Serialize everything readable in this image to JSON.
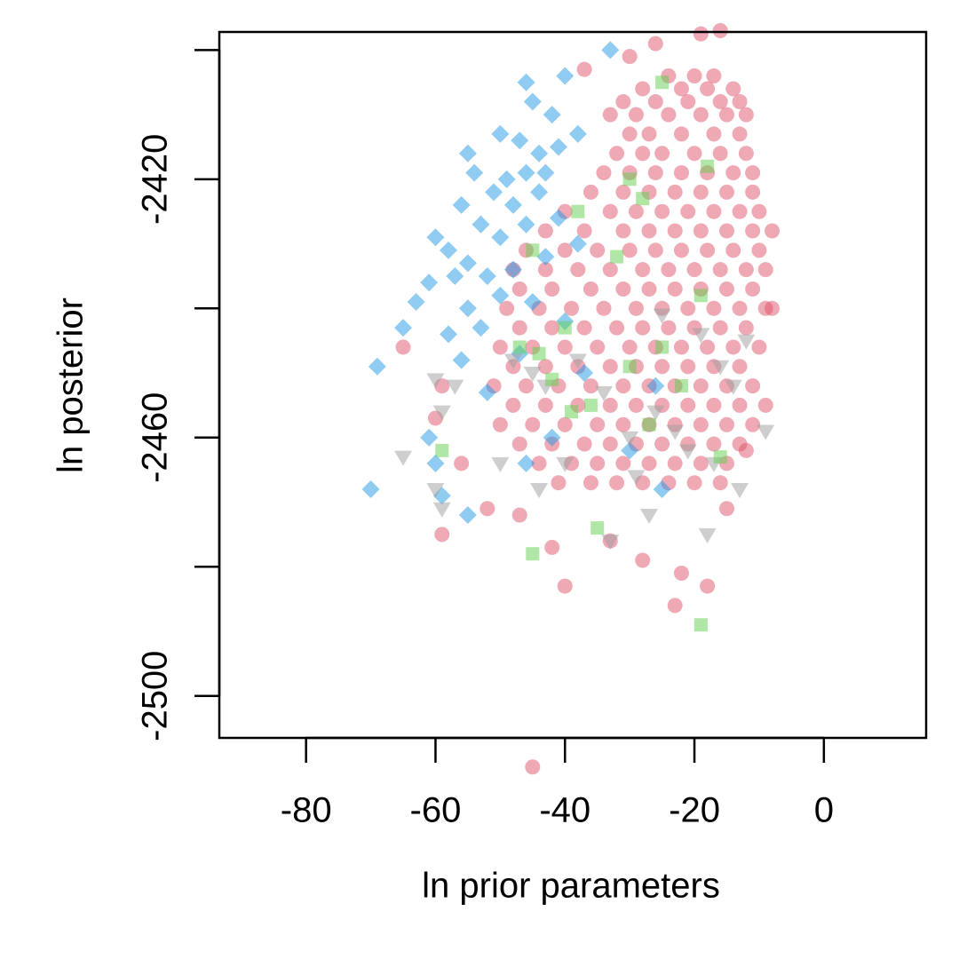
{
  "chart_data": {
    "type": "scatter",
    "xlabel": "ln prior parameters",
    "ylabel": "ln posterior",
    "xlim": [
      -93.4,
      15.8
    ],
    "ylim": [
      -2506.5,
      -2397.2
    ],
    "xticks": [
      -80,
      -60,
      -40,
      -20,
      0
    ],
    "yticks": [
      {
        "value": -2400,
        "label": null
      },
      -2420,
      {
        "value": -2440,
        "label": null
      },
      -2460,
      {
        "value": -2480,
        "label": null
      },
      -2500
    ],
    "series": [
      {
        "color": "#DF536B",
        "marker": "circle",
        "x": [
          -24,
          -20,
          -17,
          -28,
          -22,
          -18,
          -14,
          -31,
          -26,
          -21,
          -16,
          -13,
          -33,
          -29,
          -24,
          -19,
          -15,
          -12,
          -30,
          -27,
          -22,
          -17,
          -13,
          -32,
          -28,
          -25,
          -20,
          -16,
          -12,
          -34,
          -30,
          -26,
          -22,
          -18,
          -14,
          -11,
          -36,
          -31,
          -27,
          -23,
          -19,
          -15,
          -11,
          -40,
          -33,
          -29,
          -25,
          -21,
          -17,
          -13,
          -10,
          -43,
          -37,
          -31,
          -27,
          -23,
          -19,
          -15,
          -11,
          -8,
          -46,
          -40,
          -35,
          -30,
          -26,
          -22,
          -18,
          -14,
          -10,
          -48,
          -43,
          -38,
          -33,
          -28,
          -24,
          -20,
          -16,
          -12,
          -9,
          -47,
          -42,
          -36,
          -31,
          -27,
          -23,
          -19,
          -15,
          -11,
          -49,
          -44,
          -39,
          -34,
          -29,
          -25,
          -21,
          -17,
          -13,
          -9,
          -47,
          -42,
          -37,
          -32,
          -28,
          -24,
          -20,
          -16,
          -12,
          -50,
          -45,
          -40,
          -35,
          -30,
          -26,
          -22,
          -18,
          -14,
          -10,
          -48,
          -43,
          -38,
          -33,
          -29,
          -25,
          -21,
          -17,
          -13,
          -51,
          -46,
          -41,
          -36,
          -31,
          -27,
          -23,
          -19,
          -15,
          -11,
          -48,
          -43,
          -38,
          -33,
          -29,
          -25,
          -21,
          -17,
          -13,
          -9,
          -50,
          -45,
          -40,
          -35,
          -31,
          -27,
          -23,
          -19,
          -15,
          -11,
          -47,
          -42,
          -37,
          -33,
          -29,
          -25,
          -21,
          -17,
          -13,
          -44,
          -39,
          -35,
          -31,
          -27,
          -23,
          -19,
          -15,
          -41,
          -36,
          -32,
          -28,
          -24,
          -20,
          -16,
          -65,
          -59,
          -60,
          -56,
          -52,
          -59,
          -47,
          -42,
          -33,
          -28,
          -22,
          -18,
          -23,
          -40,
          -45,
          -15,
          -12,
          -8,
          -19,
          -26,
          -30,
          -37,
          -16
        ],
        "y": [
          -2404,
          -2404,
          -2404,
          -2406,
          -2406,
          -2406,
          -2406,
          -2408,
          -2408,
          -2408,
          -2408,
          -2408,
          -2410,
          -2410,
          -2410,
          -2410,
          -2410,
          -2410,
          -2413,
          -2413,
          -2413,
          -2413,
          -2413,
          -2416,
          -2416,
          -2416,
          -2416,
          -2416,
          -2416,
          -2419,
          -2419,
          -2419,
          -2419,
          -2419,
          -2419,
          -2419,
          -2422,
          -2422,
          -2422,
          -2422,
          -2422,
          -2422,
          -2422,
          -2425,
          -2425,
          -2425,
          -2425,
          -2425,
          -2425,
          -2425,
          -2425,
          -2428,
          -2428,
          -2428,
          -2428,
          -2428,
          -2428,
          -2428,
          -2428,
          -2428,
          -2431,
          -2431,
          -2431,
          -2431,
          -2431,
          -2431,
          -2431,
          -2431,
          -2431,
          -2434,
          -2434,
          -2434,
          -2434,
          -2434,
          -2434,
          -2434,
          -2434,
          -2434,
          -2434,
          -2437,
          -2437,
          -2437,
          -2437,
          -2437,
          -2437,
          -2437,
          -2437,
          -2437,
          -2440,
          -2440,
          -2440,
          -2440,
          -2440,
          -2440,
          -2440,
          -2440,
          -2440,
          -2440,
          -2443,
          -2443,
          -2443,
          -2443,
          -2443,
          -2443,
          -2443,
          -2443,
          -2443,
          -2446,
          -2446,
          -2446,
          -2446,
          -2446,
          -2446,
          -2446,
          -2446,
          -2446,
          -2446,
          -2449,
          -2449,
          -2449,
          -2449,
          -2449,
          -2449,
          -2449,
          -2449,
          -2449,
          -2452,
          -2452,
          -2452,
          -2452,
          -2452,
          -2452,
          -2452,
          -2452,
          -2452,
          -2452,
          -2455,
          -2455,
          -2455,
          -2455,
          -2455,
          -2455,
          -2455,
          -2455,
          -2455,
          -2455,
          -2458,
          -2458,
          -2458,
          -2458,
          -2458,
          -2458,
          -2458,
          -2458,
          -2458,
          -2458,
          -2461,
          -2461,
          -2461,
          -2461,
          -2461,
          -2461,
          -2461,
          -2461,
          -2461,
          -2464,
          -2464,
          -2464,
          -2464,
          -2464,
          -2464,
          -2464,
          -2464,
          -2467,
          -2467,
          -2467,
          -2467,
          -2467,
          -2467,
          -2467,
          -2446,
          -2452,
          -2457,
          -2464,
          -2471,
          -2475,
          -2472,
          -2477,
          -2476,
          -2479,
          -2481,
          -2483,
          -2486,
          -2483,
          -2511,
          -2471,
          -2462,
          -2440,
          -2397.5,
          -2399,
          -2401,
          -2403,
          -2397
        ]
      },
      {
        "color": "#2297E6",
        "marker": "diamond",
        "x": [
          -33,
          -40,
          -46,
          -45,
          -42,
          -50,
          -47,
          -55,
          -44,
          -41,
          -38,
          -54,
          -49,
          -46,
          -43,
          -51,
          -56,
          -48,
          -44,
          -53,
          -60,
          -58,
          -50,
          -46,
          -41,
          -55,
          -61,
          -57,
          -52,
          -48,
          -43,
          -38,
          -63,
          -55,
          -50,
          -45,
          -58,
          -53,
          -65,
          -69,
          -56,
          -47,
          -40,
          -52,
          -26,
          -37,
          -70,
          -61,
          -59,
          -55,
          -46,
          -42,
          -25,
          -30,
          -60
        ],
        "y": [
          -2400,
          -2404,
          -2405,
          -2408,
          -2410,
          -2413,
          -2414,
          -2416,
          -2416,
          -2415,
          -2413,
          -2419,
          -2420,
          -2419,
          -2419,
          -2422,
          -2424,
          -2424,
          -2422,
          -2427,
          -2429,
          -2431,
          -2429,
          -2427,
          -2426,
          -2433,
          -2436,
          -2435,
          -2435,
          -2434,
          -2432,
          -2430,
          -2439,
          -2440,
          -2438,
          -2439,
          -2444,
          -2443,
          -2443,
          -2449,
          -2448,
          -2447,
          -2442,
          -2453,
          -2452,
          -2450,
          -2468,
          -2460,
          -2469,
          -2472,
          -2464,
          -2460,
          -2468,
          -2462,
          -2464
        ]
      },
      {
        "color": "#9E9E9E",
        "marker": "triangle",
        "x": [
          -60,
          -57,
          -59,
          -65,
          -60,
          -59,
          -48,
          -45,
          -43,
          -38,
          -34,
          -30,
          -26,
          -23,
          -21,
          -17,
          -14,
          -12,
          -9,
          -13,
          -18,
          -27,
          -33,
          -44,
          -40,
          -50,
          -29,
          -25,
          -19,
          -16
        ],
        "y": [
          -2451,
          -2452,
          -2456,
          -2463,
          -2468,
          -2471,
          -2448,
          -2450,
          -2452,
          -2448,
          -2453,
          -2460,
          -2456,
          -2459,
          -2462,
          -2464,
          -2452,
          -2445,
          -2459,
          -2468,
          -2475,
          -2472,
          -2476,
          -2468,
          -2464,
          -2464,
          -2466,
          -2441,
          -2444,
          -2449
        ]
      },
      {
        "color": "#61D04F",
        "marker": "square",
        "x": [
          -59,
          -45,
          -35,
          -19,
          -47,
          -42,
          -39,
          -36,
          -30,
          -22,
          -19,
          -25,
          -32,
          -38,
          -45,
          -44,
          -30,
          -25,
          -18,
          -28,
          -40,
          -27,
          -16
        ],
        "y": [
          -2462,
          -2478,
          -2474,
          -2489,
          -2446,
          -2451,
          -2456,
          -2455,
          -2449,
          -2452,
          -2438,
          -2446,
          -2432,
          -2425,
          -2431,
          -2447,
          -2420,
          -2405,
          -2418,
          -2423,
          -2443,
          -2458,
          -2463
        ]
      }
    ]
  }
}
